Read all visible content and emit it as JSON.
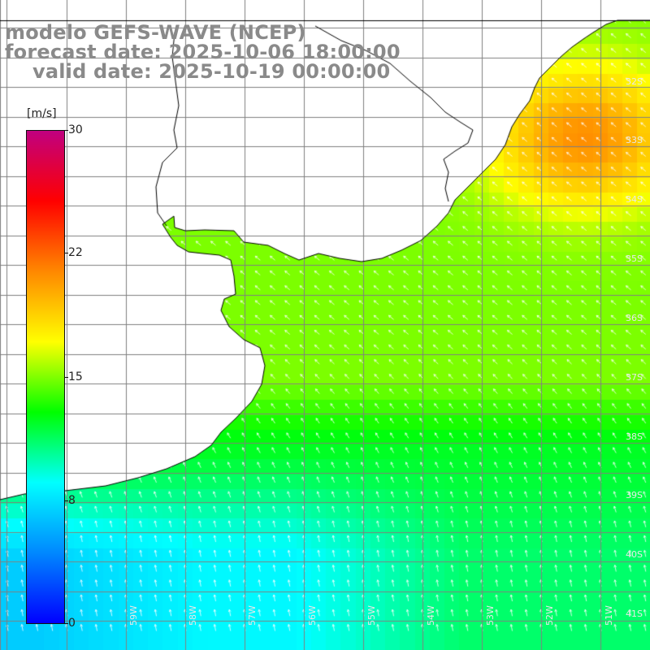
{
  "header": {
    "line1": "modelo GEFS-WAVE (NCEP)",
    "line2": "forecast date: 2025-10-06 18:00:00",
    "line3": "valid date: 2025-10-19 00:00:00"
  },
  "colorbar": {
    "unit": "[m/s]",
    "ticks": [
      "30",
      "22",
      "15",
      "8",
      "0"
    ],
    "tick_values": [
      30,
      22,
      15,
      8,
      0
    ],
    "max": 30,
    "stops": [
      "#0000ff",
      "#0088ff",
      "#00ffff",
      "#00ff00",
      "#ffff00",
      "#ff8800",
      "#ff0000",
      "#c00080"
    ]
  },
  "map": {
    "lat_labels": [
      "32S",
      "33S",
      "34S",
      "35S",
      "36S",
      "37S",
      "38S",
      "39S",
      "40S",
      "41S"
    ],
    "lon_labels": [
      "59W",
      "58W",
      "57W",
      "56W",
      "55W",
      "54W",
      "53W",
      "52W",
      "51W"
    ],
    "colors": {
      "land": "#ffffff",
      "coast": "#000000",
      "grid": "#808080",
      "arrow": "#ffffff"
    }
  }
}
